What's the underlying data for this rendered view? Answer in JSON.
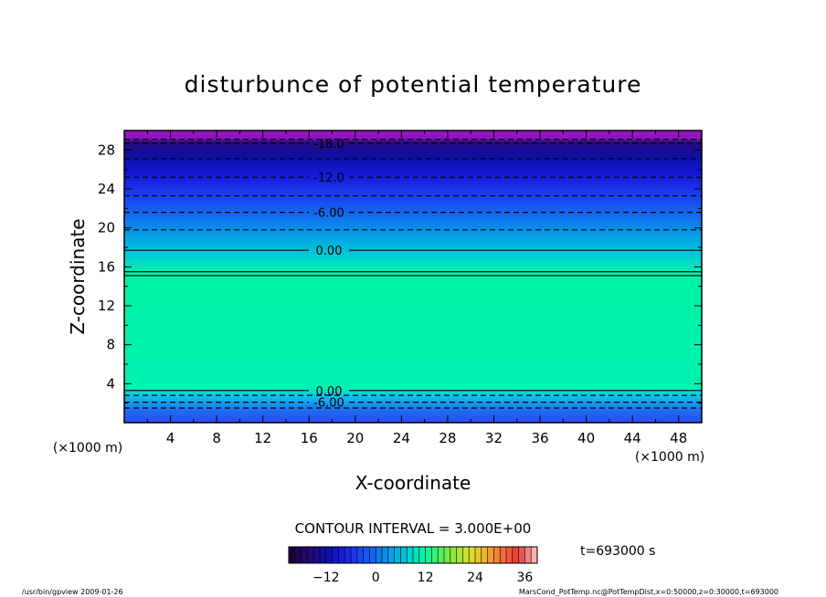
{
  "chart_data": {
    "type": "heatmap",
    "title": "disturbunce of potential temperature",
    "xlabel": "X-coordinate",
    "ylabel": "Z-coordinate",
    "x_units": "(×1000 m)",
    "y_units": "(×1000 m)",
    "xlim": [
      0,
      50
    ],
    "ylim": [
      0,
      30
    ],
    "x_ticks": [
      4,
      8,
      12,
      16,
      20,
      24,
      28,
      32,
      36,
      40,
      44,
      48
    ],
    "y_ticks": [
      4,
      8,
      12,
      16,
      20,
      24,
      28
    ],
    "x_tick_labels": [
      "4",
      "8",
      "12",
      "16",
      "20",
      "24",
      "28",
      "32",
      "36",
      "40",
      "44",
      "48"
    ],
    "y_tick_labels": [
      "4",
      "8",
      "12",
      "16",
      "20",
      "24",
      "28"
    ],
    "contour_interval_text": "CONTOUR INTERVAL = 3.000E+00",
    "time_label": "t=693000 s",
    "contour_lines": [
      {
        "z": 29.1,
        "label": "",
        "style": "dashed"
      },
      {
        "z": 28.7,
        "label": "-18.0",
        "style": "dashed"
      },
      {
        "z": 27.1,
        "label": "",
        "style": "dashed"
      },
      {
        "z": 25.2,
        "label": "-12.0",
        "style": "dashed"
      },
      {
        "z": 23.3,
        "label": "",
        "style": "dashed"
      },
      {
        "z": 21.6,
        "label": "-6.00",
        "style": "dashed"
      },
      {
        "z": 19.8,
        "label": "",
        "style": "dashed"
      },
      {
        "z": 17.7,
        "label": "0.00",
        "style": "solid"
      },
      {
        "z": 15.5,
        "label": "",
        "style": "solid"
      },
      {
        "z": 15.1,
        "label": "",
        "style": "solid"
      },
      {
        "z": 3.3,
        "label": "0.00",
        "style": "solid"
      },
      {
        "z": 2.8,
        "label": "",
        "style": "dashed"
      },
      {
        "z": 2.1,
        "label": "-6.00",
        "style": "dashed"
      },
      {
        "z": 1.5,
        "label": "",
        "style": "dashed"
      }
    ],
    "field_profile": [
      {
        "z": 0.0,
        "color": "#2a4bf0"
      },
      {
        "z": 1.2,
        "color": "#1f6cf2"
      },
      {
        "z": 2.2,
        "color": "#14a6ee"
      },
      {
        "z": 3.1,
        "color": "#0ad7da"
      },
      {
        "z": 3.5,
        "color": "#00f2b0"
      },
      {
        "z": 15.3,
        "color": "#00f2a4"
      },
      {
        "z": 16.0,
        "color": "#00e6bf"
      },
      {
        "z": 17.6,
        "color": "#00c4da"
      },
      {
        "z": 19.5,
        "color": "#0699e8"
      },
      {
        "z": 21.5,
        "color": "#1466f0"
      },
      {
        "z": 23.5,
        "color": "#1c3cf0"
      },
      {
        "z": 25.5,
        "color": "#1418d8"
      },
      {
        "z": 27.5,
        "color": "#100ea0"
      },
      {
        "z": 28.8,
        "color": "#2a0a80"
      },
      {
        "z": 29.2,
        "color": "#8a14b8"
      },
      {
        "z": 30.0,
        "color": "#9a18c4"
      }
    ],
    "colorbar": {
      "ticks": [
        -12,
        0,
        12,
        24,
        36
      ],
      "tick_labels": [
        "−12",
        "0",
        "12",
        "24",
        "36"
      ],
      "range": [
        -21,
        39
      ],
      "n_bins": 40,
      "colors": [
        "#1a0040",
        "#2a0870",
        "#100ea0",
        "#1418d8",
        "#1c3cf0",
        "#1466f0",
        "#0699e8",
        "#00c4da",
        "#00f2b0",
        "#40f070",
        "#90e830",
        "#d8e030",
        "#f0b030",
        "#f07040",
        "#e83838",
        "#f8b0b0"
      ]
    }
  },
  "footer": {
    "left": "/usr/bin/gpview   2009-01-26",
    "right": "MarsCond_PotTemp.nc@PotTempDist,x=0:50000,z=0:30000,t=693000"
  }
}
